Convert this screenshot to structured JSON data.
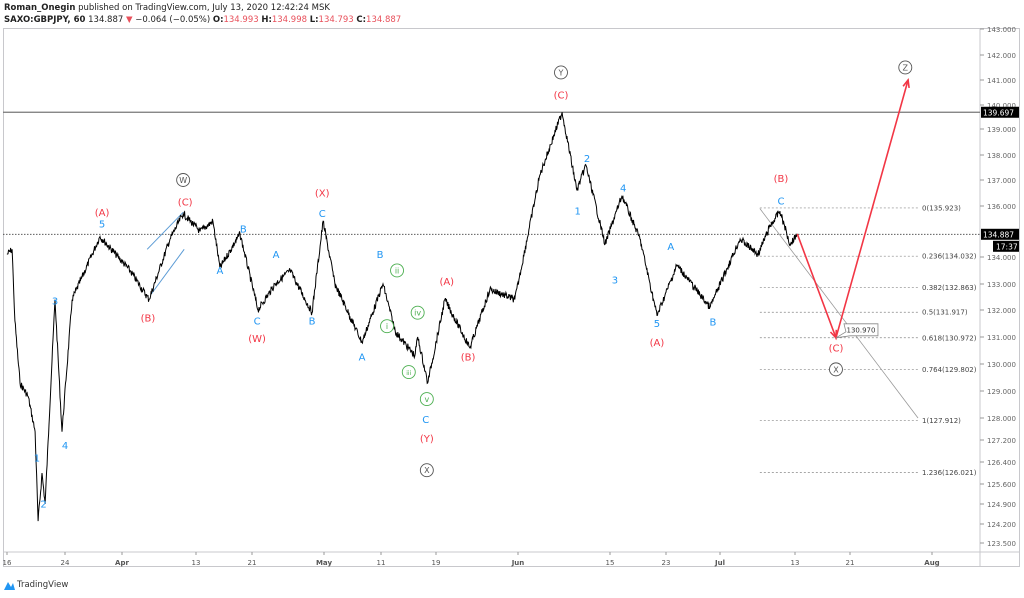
{
  "header": {
    "author": "Roman_Onegin",
    "published": "published on TradingView.com, July 13, 2020 12:42:24 MSK",
    "symbol": "SAXO:GBPJPY, 60",
    "last": "134.887",
    "change_icon": "triangle-down-icon",
    "change": "−0.064 (−0.05%)",
    "o_label": "O:",
    "o": "134.993",
    "h_label": "H:",
    "h": "134.998",
    "l_label": "L:",
    "l": "134.793",
    "c_label": "C:",
    "c": "134.887"
  },
  "footer": {
    "brand": "TradingView"
  },
  "colors": {
    "price": "#000000",
    "red": "#f23645",
    "blue": "#2196f3",
    "green": "#4caf50",
    "gray": "#555555"
  },
  "chart_data": {
    "type": "line",
    "y_scale": "log",
    "ylim": [
      123.2,
      143.3
    ],
    "y_ticks": [
      "143.000",
      "142.000",
      "141.000",
      "140.000",
      "139.000",
      "138.000",
      "137.000",
      "136.000",
      "134.000",
      "133.000",
      "132.000",
      "131.000",
      "130.000",
      "129.000",
      "128.000",
      "127.200",
      "126.400",
      "125.600",
      "124.900",
      "124.200",
      "123.500"
    ],
    "x_ticks": [
      {
        "date": "2020-03-16",
        "label": "16"
      },
      {
        "date": "2020-03-24",
        "label": "24"
      },
      {
        "date": "2020-04-01",
        "label": "Apr"
      },
      {
        "date": "2020-04-13",
        "label": "13"
      },
      {
        "date": "2020-04-21",
        "label": "21"
      },
      {
        "date": "2020-05-01",
        "label": "May"
      },
      {
        "date": "2020-05-11",
        "label": "11"
      },
      {
        "date": "2020-05-19",
        "label": "19"
      },
      {
        "date": "2020-06-01",
        "label": "Jun"
      },
      {
        "date": "2020-06-15",
        "label": "15"
      },
      {
        "date": "2020-06-23",
        "label": "23"
      },
      {
        "date": "2020-07-01",
        "label": "Jul"
      },
      {
        "date": "2020-07-13",
        "label": "13"
      },
      {
        "date": "2020-07-21",
        "label": "21"
      },
      {
        "date": "2020-08-01",
        "label": "Aug"
      }
    ],
    "price_labels": {
      "high_line": "139.697",
      "last": "134.887",
      "countdown": "17:37"
    },
    "series": [
      {
        "points": [
          [
            "2020-03-16 00",
            134.1
          ],
          [
            "2020-03-16 17",
            134.3
          ],
          [
            "2020-03-17 02",
            131.6
          ],
          [
            "2020-03-17 19",
            129.3
          ],
          [
            "2020-03-18 22",
            128.8
          ],
          [
            "2020-03-19 21",
            127.5
          ],
          [
            "2020-03-20 07",
            124.3
          ],
          [
            "2020-03-20 20",
            126.0
          ],
          [
            "2020-03-21 06",
            124.9
          ],
          [
            "2020-03-22 15",
            132.4
          ],
          [
            "2020-03-23 14",
            127.5
          ],
          [
            "2020-03-25 00",
            132.4
          ],
          [
            "2020-03-28 22",
            134.8
          ],
          [
            "2020-04-02 07",
            133.5
          ],
          [
            "2020-04-05 09",
            132.4
          ],
          [
            "2020-04-08 19",
            134.7
          ],
          [
            "2020-04-10 22",
            135.7
          ],
          [
            "2020-04-13 14",
            135.0
          ],
          [
            "2020-04-15 10",
            135.4
          ],
          [
            "2020-04-16 10",
            133.6
          ],
          [
            "2020-04-19 07",
            134.9
          ],
          [
            "2020-04-21 20",
            132.0
          ],
          [
            "2020-04-24 05",
            133.0
          ],
          [
            "2020-04-26 07",
            133.5
          ],
          [
            "2020-04-29 08",
            131.9
          ],
          [
            "2020-04-30 21",
            135.4
          ],
          [
            "2020-05-02 22",
            133.0
          ],
          [
            "2020-05-07 16",
            130.8
          ],
          [
            "2020-05-11 07",
            133.0
          ],
          [
            "2020-05-13 02",
            131.2
          ],
          [
            "2020-05-15 22",
            130.3
          ],
          [
            "2020-05-16 08",
            131.0
          ],
          [
            "2020-05-17 19",
            129.3
          ],
          [
            "2020-05-20 10",
            132.4
          ],
          [
            "2020-05-24 09",
            130.6
          ],
          [
            "2020-05-27 13",
            132.8
          ],
          [
            "2020-05-31 12",
            132.4
          ],
          [
            "2020-06-04 08",
            137.2
          ],
          [
            "2020-06-07 17",
            139.7
          ],
          [
            "2020-06-09 23",
            136.6
          ],
          [
            "2020-06-11 08",
            137.6
          ],
          [
            "2020-06-14 06",
            134.5
          ],
          [
            "2020-06-16 17",
            136.4
          ],
          [
            "2020-06-19 07",
            134.7
          ],
          [
            "2020-06-21 17",
            131.8
          ],
          [
            "2020-06-24 15",
            133.7
          ],
          [
            "2020-06-29 12",
            132.1
          ],
          [
            "2020-07-04 05",
            134.7
          ],
          [
            "2020-07-07 02",
            134.1
          ],
          [
            "2020-07-09 00",
            135.2
          ],
          [
            "2020-07-10 14",
            135.8
          ],
          [
            "2020-07-12 05",
            134.5
          ],
          [
            "2020-07-13 08",
            134.9
          ]
        ]
      }
    ],
    "horizontal_lines": [
      {
        "price": 139.697,
        "style": "solid"
      },
      {
        "price": 134.887,
        "style": "dotted"
      }
    ],
    "fib_levels": [
      {
        "label": "0(135.923)",
        "price": 135.923
      },
      {
        "label": "0.236(134.032)",
        "price": 134.032
      },
      {
        "label": "0.382(132.863)",
        "price": 132.863
      },
      {
        "label": "0.5(131.917)",
        "price": 131.917
      },
      {
        "label": "0.618(130.972)",
        "price": 130.972
      },
      {
        "label": "0.764(129.802)",
        "price": 129.802
      },
      {
        "label": "1(127.912)",
        "price": 127.912
      },
      {
        "label": "1.236(126.021)",
        "price": 126.021
      }
    ],
    "fib_range": [
      "2020-07-07 09",
      "2020-07-30 03"
    ],
    "trend_line": [
      [
        "2020-07-07 09",
        135.9
      ],
      [
        "2020-07-30 03",
        128.0
      ]
    ],
    "channel_lines": [
      [
        [
          "2020-04-05 02",
          134.3
        ],
        [
          "2020-04-10 22",
          135.75
        ]
      ],
      [
        [
          "2020-04-05 17",
          132.6
        ],
        [
          "2020-04-11 02",
          134.3
        ]
      ]
    ],
    "projection": [
      [
        "2020-07-13 08",
        134.9
      ],
      [
        "2020-07-18 23",
        130.97
      ],
      [
        "2020-07-28 19",
        141.0
      ]
    ],
    "callout": {
      "text": "130.970",
      "date": "2020-07-18 23",
      "price": 130.97
    },
    "wave_labels": [
      {
        "t": "1",
        "c": "blue",
        "d": "2020-03-20 03",
        "p": 126.55
      },
      {
        "t": "2",
        "c": "blue",
        "d": "2020-03-21 01",
        "p": 124.9
      },
      {
        "t": "3",
        "c": "blue",
        "d": "2020-03-22 15",
        "p": 132.35
      },
      {
        "t": "4",
        "c": "blue",
        "d": "2020-03-24 00",
        "p": 127.0
      },
      {
        "t": "5",
        "c": "blue",
        "d": "2020-03-29 05",
        "p": 135.3
      },
      {
        "t": "(A)",
        "c": "red",
        "d": "2020-03-29 05",
        "p": 135.75
      },
      {
        "t": "(B)",
        "c": "red",
        "d": "2020-04-05 05",
        "p": 131.7
      },
      {
        "t": "(C)",
        "c": "red",
        "d": "2020-04-11 06",
        "p": 136.15
      },
      {
        "t": "W",
        "c": "gray",
        "circ": true,
        "d": "2020-04-10 22",
        "p": 137.0
      },
      {
        "t": "A",
        "c": "blue",
        "d": "2020-04-16 10",
        "p": 133.5
      },
      {
        "t": "B",
        "c": "blue",
        "d": "2020-04-19 18",
        "p": 135.1
      },
      {
        "t": "C",
        "c": "blue",
        "d": "2020-04-21 17",
        "p": 131.6
      },
      {
        "t": "(W)",
        "c": "red",
        "d": "2020-04-21 17",
        "p": 130.95
      },
      {
        "t": "A",
        "c": "blue",
        "d": "2020-04-24 08",
        "p": 134.1
      },
      {
        "t": "B",
        "c": "blue",
        "d": "2020-04-29 08",
        "p": 131.6
      },
      {
        "t": "C",
        "c": "blue",
        "d": "2020-04-30 18",
        "p": 135.7
      },
      {
        "t": "(X)",
        "c": "red",
        "d": "2020-04-30 18",
        "p": 136.5
      },
      {
        "t": "A",
        "c": "blue",
        "d": "2020-05-07 16",
        "p": 130.25
      },
      {
        "t": "B",
        "c": "blue",
        "d": "2020-05-10 20",
        "p": 134.1
      },
      {
        "t": "ii",
        "c": "green",
        "circ": true,
        "d": "2020-05-13 08",
        "p": 133.5
      },
      {
        "t": "i",
        "c": "green",
        "circ": true,
        "d": "2020-05-11 21",
        "p": 131.4
      },
      {
        "t": "iv",
        "c": "green",
        "circ": true,
        "d": "2020-05-16 08",
        "p": 131.9
      },
      {
        "t": "iii",
        "c": "green",
        "circ": true,
        "d": "2020-05-15 01",
        "p": 129.7
      },
      {
        "t": "v",
        "c": "green",
        "circ": true,
        "d": "2020-05-17 16",
        "p": 128.7
      },
      {
        "t": "C",
        "c": "blue",
        "d": "2020-05-17 12",
        "p": 127.95
      },
      {
        "t": "(Y)",
        "c": "red",
        "d": "2020-05-17 16",
        "p": 127.25
      },
      {
        "t": "X",
        "c": "gray",
        "circ": true,
        "d": "2020-05-17 16",
        "p": 126.1
      },
      {
        "t": "(A)",
        "c": "red",
        "d": "2020-05-20 17",
        "p": 133.1
      },
      {
        "t": "(B)",
        "c": "red",
        "d": "2020-05-24 02",
        "p": 130.25
      },
      {
        "t": "Y",
        "c": "gray",
        "circ": true,
        "d": "2020-06-07 13",
        "p": 141.3
      },
      {
        "t": "(C)",
        "c": "red",
        "d": "2020-06-07 13",
        "p": 140.4
      },
      {
        "t": "2",
        "c": "blue",
        "d": "2020-06-11 12",
        "p": 137.85
      },
      {
        "t": "1",
        "c": "blue",
        "d": "2020-06-10 02",
        "p": 135.8
      },
      {
        "t": "4",
        "c": "blue",
        "d": "2020-06-16 21",
        "p": 136.7
      },
      {
        "t": "3",
        "c": "blue",
        "d": "2020-06-15 17",
        "p": 133.15
      },
      {
        "t": "5",
        "c": "blue",
        "d": "2020-06-21 17",
        "p": 131.5
      },
      {
        "t": "(A)",
        "c": "red",
        "d": "2020-06-21 17",
        "p": 130.8
      },
      {
        "t": "A",
        "c": "blue",
        "d": "2020-06-23 17",
        "p": 134.4
      },
      {
        "t": "B",
        "c": "blue",
        "d": "2020-06-29 23",
        "p": 131.55
      },
      {
        "t": "(B)",
        "c": "red",
        "d": "2020-07-10 18",
        "p": 137.05
      },
      {
        "t": "C",
        "c": "blue",
        "d": "2020-07-10 18",
        "p": 136.2
      },
      {
        "t": "(C)",
        "c": "red",
        "d": "2020-07-18 23",
        "p": 130.6
      },
      {
        "t": "X",
        "c": "gray",
        "circ": true,
        "d": "2020-07-18 23",
        "p": 129.8
      },
      {
        "t": "Z",
        "c": "gray",
        "circ": true,
        "d": "2020-07-28 10",
        "p": 141.5
      }
    ]
  }
}
